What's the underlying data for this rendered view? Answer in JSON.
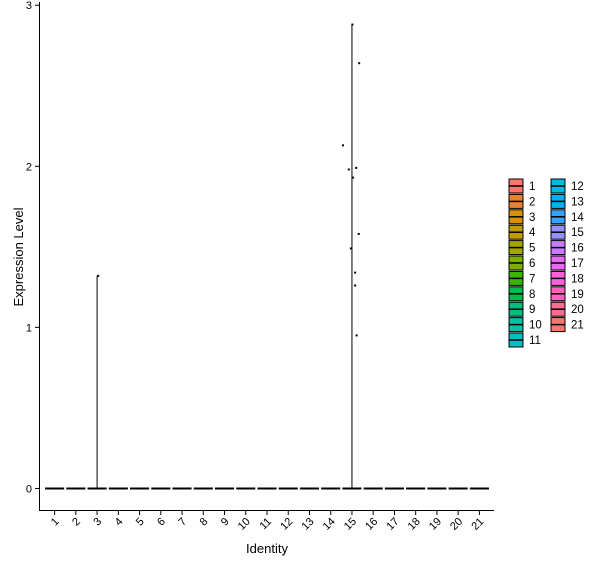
{
  "chart_data": {
    "type": "violin",
    "xlabel": "Identity",
    "ylabel": "Expression Level",
    "ylim": [
      -0.14,
      3.02
    ],
    "yticks": [
      0,
      1,
      2,
      3
    ],
    "grid": false,
    "legend_position": "right",
    "categories": [
      "1",
      "2",
      "3",
      "4",
      "5",
      "6",
      "7",
      "8",
      "9",
      "10",
      "11",
      "12",
      "13",
      "14",
      "15",
      "16",
      "17",
      "18",
      "19",
      "20",
      "21"
    ],
    "colors": [
      "#F8766D",
      "#EA8331",
      "#D89000",
      "#C09B00",
      "#A3A500",
      "#7CAE00",
      "#39B600",
      "#00BB4E",
      "#00BF7D",
      "#00C1A3",
      "#00BFC4",
      "#00BAE0",
      "#00B0F6",
      "#35A2FF",
      "#9590FF",
      "#C77CFF",
      "#E76BF3",
      "#FA62DB",
      "#FF62BC",
      "#FF6C91",
      "#F8766D"
    ],
    "max_values": [
      0,
      0,
      1.32,
      0,
      0,
      0,
      0,
      0,
      0,
      0,
      0,
      0,
      0,
      0,
      2.88,
      0,
      0,
      0,
      0,
      0,
      0
    ],
    "points": [
      {
        "group": "3",
        "x_offset": 0.05,
        "y": 1.32
      },
      {
        "group": "15",
        "x_offset": 0.02,
        "y": 2.88
      },
      {
        "group": "15",
        "x_offset": 0.34,
        "y": 2.64
      },
      {
        "group": "15",
        "x_offset": -0.42,
        "y": 2.13
      },
      {
        "group": "15",
        "x_offset": -0.15,
        "y": 1.98
      },
      {
        "group": "15",
        "x_offset": 0.2,
        "y": 1.99
      },
      {
        "group": "15",
        "x_offset": 0.05,
        "y": 1.93
      },
      {
        "group": "15",
        "x_offset": 0.32,
        "y": 1.58
      },
      {
        "group": "15",
        "x_offset": -0.05,
        "y": 1.49
      },
      {
        "group": "15",
        "x_offset": 0.15,
        "y": 1.34
      },
      {
        "group": "15",
        "x_offset": 0.15,
        "y": 1.26
      },
      {
        "group": "15",
        "x_offset": 0.22,
        "y": 0.95
      }
    ]
  }
}
